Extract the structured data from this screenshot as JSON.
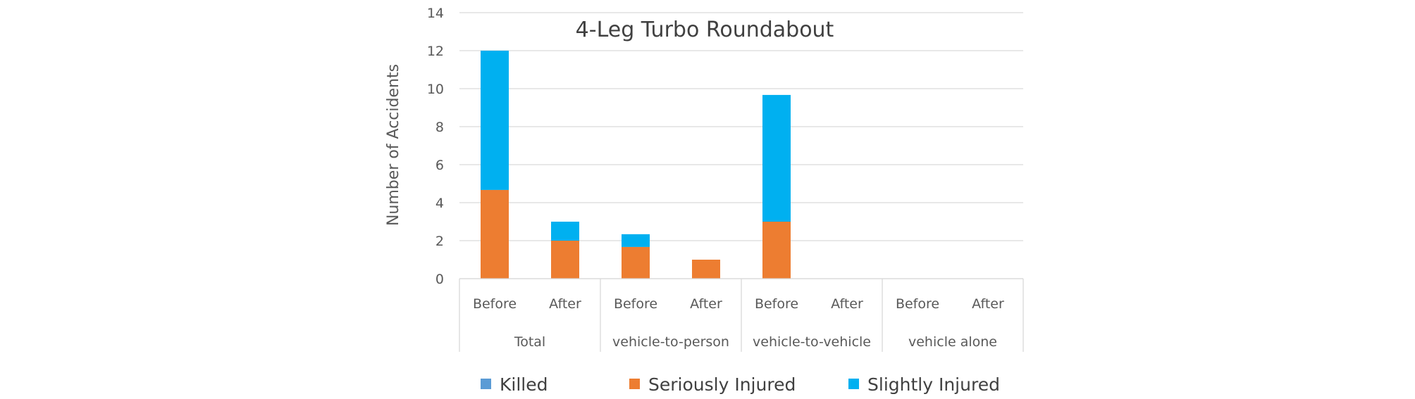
{
  "chart_data": {
    "type": "bar",
    "stacked": true,
    "title": "4-Leg Turbo Roundabout",
    "ylabel": "Number of Accidents",
    "ylim": [
      0,
      14
    ],
    "yticks": [
      0,
      2,
      4,
      6,
      8,
      10,
      12,
      14
    ],
    "grid": true,
    "legend_position": "bottom",
    "categories": [
      "Before",
      "After",
      "Before",
      "After",
      "Before",
      "After",
      "Before",
      "After"
    ],
    "groups": [
      {
        "label": "Total",
        "span": 2
      },
      {
        "label": "vehicle-to-person",
        "span": 2
      },
      {
        "label": "vehicle-to-vehicle",
        "span": 2
      },
      {
        "label": "vehicle alone",
        "span": 2
      }
    ],
    "series": [
      {
        "name": "Killed",
        "color": "#5b9bd5",
        "values": [
          0,
          0,
          0,
          0,
          0,
          0,
          0,
          0
        ]
      },
      {
        "name": "Seriously Injured",
        "color": "#ed7d31",
        "values": [
          4.67,
          2,
          1.67,
          1,
          3,
          0,
          0,
          0
        ]
      },
      {
        "name": "Slightly Injured",
        "color": "#00b0f0",
        "values": [
          7.33,
          1,
          0.67,
          0,
          6.67,
          0,
          0,
          0
        ]
      }
    ]
  }
}
